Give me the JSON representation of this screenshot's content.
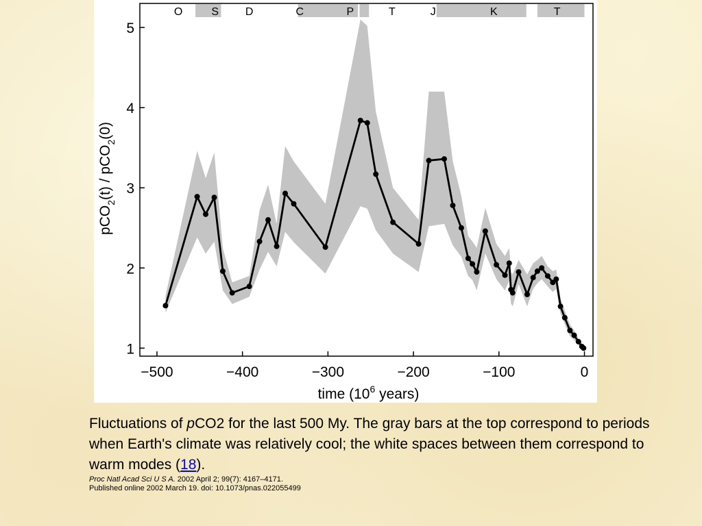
{
  "caption": {
    "prefix": "Fluctuations of ",
    "italic_p": "p",
    "after_p": "CO2 for the last 500 My. The gray bars at the top correspond to periods when Earth's climate was relatively cool; the white spaces between them correspond to warm modes (",
    "ref_link": "18",
    "suffix": ").",
    "journal": "Proc Natl Acad Sci U S A.",
    "citation": " 2002 April 2; 99(7): 4167–4171.",
    "published": "Published online 2002 March 19. doi: 10.1073/pnas.022055499"
  },
  "chart_data": {
    "type": "line",
    "title": "",
    "xlabel": "time (10^6 years)",
    "xlabel_parts": {
      "before": "time (10",
      "sup": "6",
      "after": " years)"
    },
    "ylabel": "pCO2(t) / pCO2(0)",
    "ylabel_parts": {
      "p1": "pCO",
      "s1": "2",
      "p2": "(t) / pCO",
      "s2": "2",
      "p3": "(0)"
    },
    "xlim": [
      -520,
      10
    ],
    "ylim": [
      0.9,
      5.3
    ],
    "x_ticks": [
      -500,
      -400,
      -300,
      -200,
      -100,
      0
    ],
    "x_tick_labels": [
      "−500",
      "−400",
      "−300",
      "−200",
      "−100",
      "0"
    ],
    "y_ticks": [
      1,
      2,
      3,
      4,
      5
    ],
    "y_tick_labels": [
      "1",
      "2",
      "3",
      "4",
      "5"
    ],
    "grid": false,
    "series": [
      {
        "color": "#000000",
        "x": [
          -490,
          -453,
          -443,
          -433,
          -423,
          -412,
          -392,
          -380,
          -370,
          -360,
          -350,
          -340,
          -303,
          -262,
          -254,
          -244,
          -224,
          -194,
          -182,
          -164,
          -154,
          -144,
          -136,
          -131,
          -126,
          -116,
          -103,
          -93,
          -88,
          -86,
          -84,
          -77,
          -67,
          -60,
          -55,
          -50,
          -43,
          -37,
          -33,
          -28,
          -23,
          -17,
          -12,
          -7,
          -3,
          -1
        ],
        "y": [
          1.53,
          2.89,
          2.67,
          2.88,
          1.96,
          1.69,
          1.77,
          2.33,
          2.6,
          2.27,
          2.93,
          2.8,
          2.26,
          3.84,
          3.81,
          3.17,
          2.57,
          2.3,
          3.34,
          3.36,
          2.78,
          2.5,
          2.12,
          2.05,
          1.95,
          2.46,
          2.04,
          1.91,
          2.06,
          1.73,
          1.69,
          1.95,
          1.67,
          1.88,
          1.96,
          2.0,
          1.9,
          1.82,
          1.86,
          1.52,
          1.38,
          1.22,
          1.16,
          1.08,
          1.02,
          1.0
        ],
        "band_upper": [
          1.65,
          3.46,
          3.12,
          3.44,
          2.25,
          1.82,
          1.9,
          2.72,
          3.04,
          2.55,
          3.52,
          3.33,
          2.8,
          5.1,
          5.02,
          3.95,
          3.0,
          2.6,
          4.2,
          4.2,
          3.33,
          2.9,
          2.4,
          2.33,
          2.25,
          2.75,
          2.3,
          2.15,
          2.25,
          1.95,
          1.92,
          2.1,
          1.92,
          2.06,
          2.1,
          2.15,
          2.02,
          1.96,
          1.98,
          1.62,
          1.47,
          1.3,
          1.22,
          1.12,
          1.06,
          1.02
        ],
        "band_lower": [
          1.44,
          2.38,
          2.18,
          2.33,
          1.72,
          1.55,
          1.64,
          1.98,
          2.2,
          2.02,
          2.45,
          2.32,
          1.93,
          2.77,
          2.74,
          2.47,
          2.18,
          1.95,
          2.52,
          2.55,
          2.28,
          2.14,
          1.9,
          1.85,
          1.72,
          2.18,
          1.86,
          1.72,
          1.84,
          1.56,
          1.52,
          1.8,
          1.52,
          1.74,
          1.81,
          1.86,
          1.77,
          1.7,
          1.74,
          1.43,
          1.3,
          1.15,
          1.1,
          1.04,
          0.99,
          0.97
        ]
      }
    ],
    "band_color": "#c4c4c4",
    "cool_periods": [
      {
        "start": -455,
        "end": -425
      },
      {
        "start": -335,
        "end": -265
      },
      {
        "start": -263,
        "end": -252
      },
      {
        "start": -173,
        "end": -68
      },
      {
        "start": -55,
        "end": 0
      }
    ],
    "period_labels": [
      {
        "label": "O",
        "x": -475
      },
      {
        "label": "S",
        "x": -432
      },
      {
        "label": "D",
        "x": -392
      },
      {
        "label": "C",
        "x": -333
      },
      {
        "label": "P",
        "x": -274
      },
      {
        "label": "T",
        "x": -225
      },
      {
        "label": "J",
        "x": -177
      },
      {
        "label": "K",
        "x": -106
      },
      {
        "label": "T",
        "x": -32
      }
    ],
    "cool_bar_color": "#c4c4c4"
  }
}
